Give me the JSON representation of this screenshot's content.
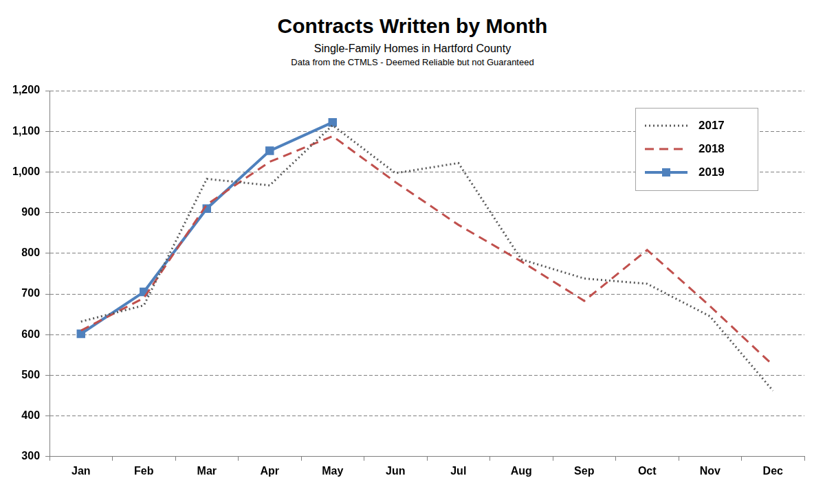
{
  "chart_data": {
    "type": "line",
    "title": "Contracts Written by Month",
    "subtitle": [
      "Single-Family Homes in Hartford County",
      "Data from the CTMLS - Deemed Reliable but not Guaranteed"
    ],
    "categories": [
      "Jan",
      "Feb",
      "Mar",
      "Apr",
      "May",
      "Jun",
      "Jul",
      "Aug",
      "Sep",
      "Oct",
      "Nov",
      "Dec"
    ],
    "series": [
      {
        "name": "2017",
        "color": "#595959",
        "line_style": "dotted",
        "marker": "none",
        "values": [
          632,
          672,
          983,
          967,
          1115,
          997,
          1022,
          785,
          738,
          725,
          645,
          462
        ]
      },
      {
        "name": "2018",
        "color": "#c0504d",
        "line_style": "dashed",
        "marker": "none",
        "values": [
          610,
          690,
          920,
          1025,
          1088,
          975,
          870,
          780,
          683,
          808,
          670,
          525
        ]
      },
      {
        "name": "2019",
        "color": "#4f81bd",
        "line_style": "solid",
        "marker": "square",
        "values": [
          602,
          705,
          910,
          1052,
          1122,
          null,
          null,
          null,
          null,
          null,
          null,
          null
        ]
      }
    ],
    "ylim": [
      300,
      1200
    ],
    "yticks": [
      300,
      400,
      500,
      600,
      700,
      800,
      900,
      {
        "value": 1000,
        "label": "1,000"
      },
      {
        "value": 1100,
        "label": "1,100"
      },
      {
        "value": 1200,
        "label": "1,200"
      }
    ],
    "grid": true,
    "legend": "upper right"
  }
}
